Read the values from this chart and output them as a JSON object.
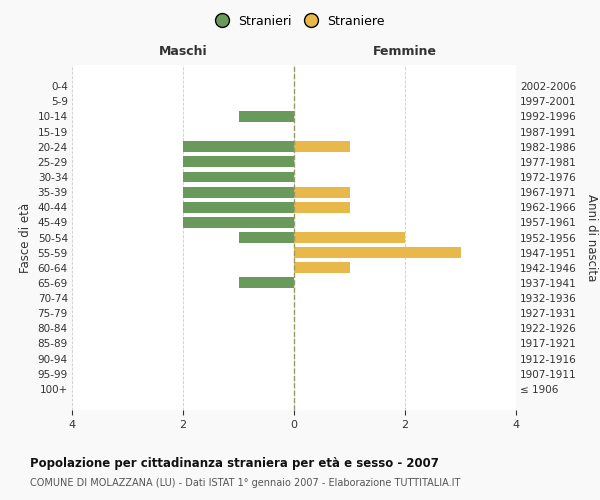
{
  "age_groups": [
    "100+",
    "95-99",
    "90-94",
    "85-89",
    "80-84",
    "75-79",
    "70-74",
    "65-69",
    "60-64",
    "55-59",
    "50-54",
    "45-49",
    "40-44",
    "35-39",
    "30-34",
    "25-29",
    "20-24",
    "15-19",
    "10-14",
    "5-9",
    "0-4"
  ],
  "birth_years": [
    "≤ 1906",
    "1907-1911",
    "1912-1916",
    "1917-1921",
    "1922-1926",
    "1927-1931",
    "1932-1936",
    "1937-1941",
    "1942-1946",
    "1947-1951",
    "1952-1956",
    "1957-1961",
    "1962-1966",
    "1967-1971",
    "1972-1976",
    "1977-1981",
    "1982-1986",
    "1987-1991",
    "1992-1996",
    "1997-2001",
    "2002-2006"
  ],
  "maschi": [
    0,
    0,
    0,
    0,
    0,
    0,
    0,
    1,
    0,
    0,
    1,
    2,
    2,
    2,
    2,
    2,
    2,
    0,
    1,
    0,
    0
  ],
  "femmine": [
    0,
    0,
    0,
    0,
    0,
    0,
    0,
    0,
    1,
    3,
    2,
    0,
    1,
    1,
    0,
    0,
    1,
    0,
    0,
    0,
    0
  ],
  "color_maschi": "#6a9a5b",
  "color_femmine": "#e8b84b",
  "xlim": 4,
  "xlabel_left": "Maschi",
  "xlabel_right": "Femmine",
  "ylabel_left": "Fasce di età",
  "ylabel_right": "Anni di nascita",
  "title": "Popolazione per cittadinanza straniera per età e sesso - 2007",
  "subtitle": "COMUNE DI MOLAZZANA (LU) - Dati ISTAT 1° gennaio 2007 - Elaborazione TUTTITALIA.IT",
  "legend_maschi": "Stranieri",
  "legend_femmine": "Straniere",
  "bg_color": "#f9f9f9",
  "plot_bg_color": "#ffffff",
  "grid_color": "#cccccc",
  "centerline_color": "#999966",
  "text_color": "#333333",
  "title_color": "#111111",
  "subtitle_color": "#555555"
}
